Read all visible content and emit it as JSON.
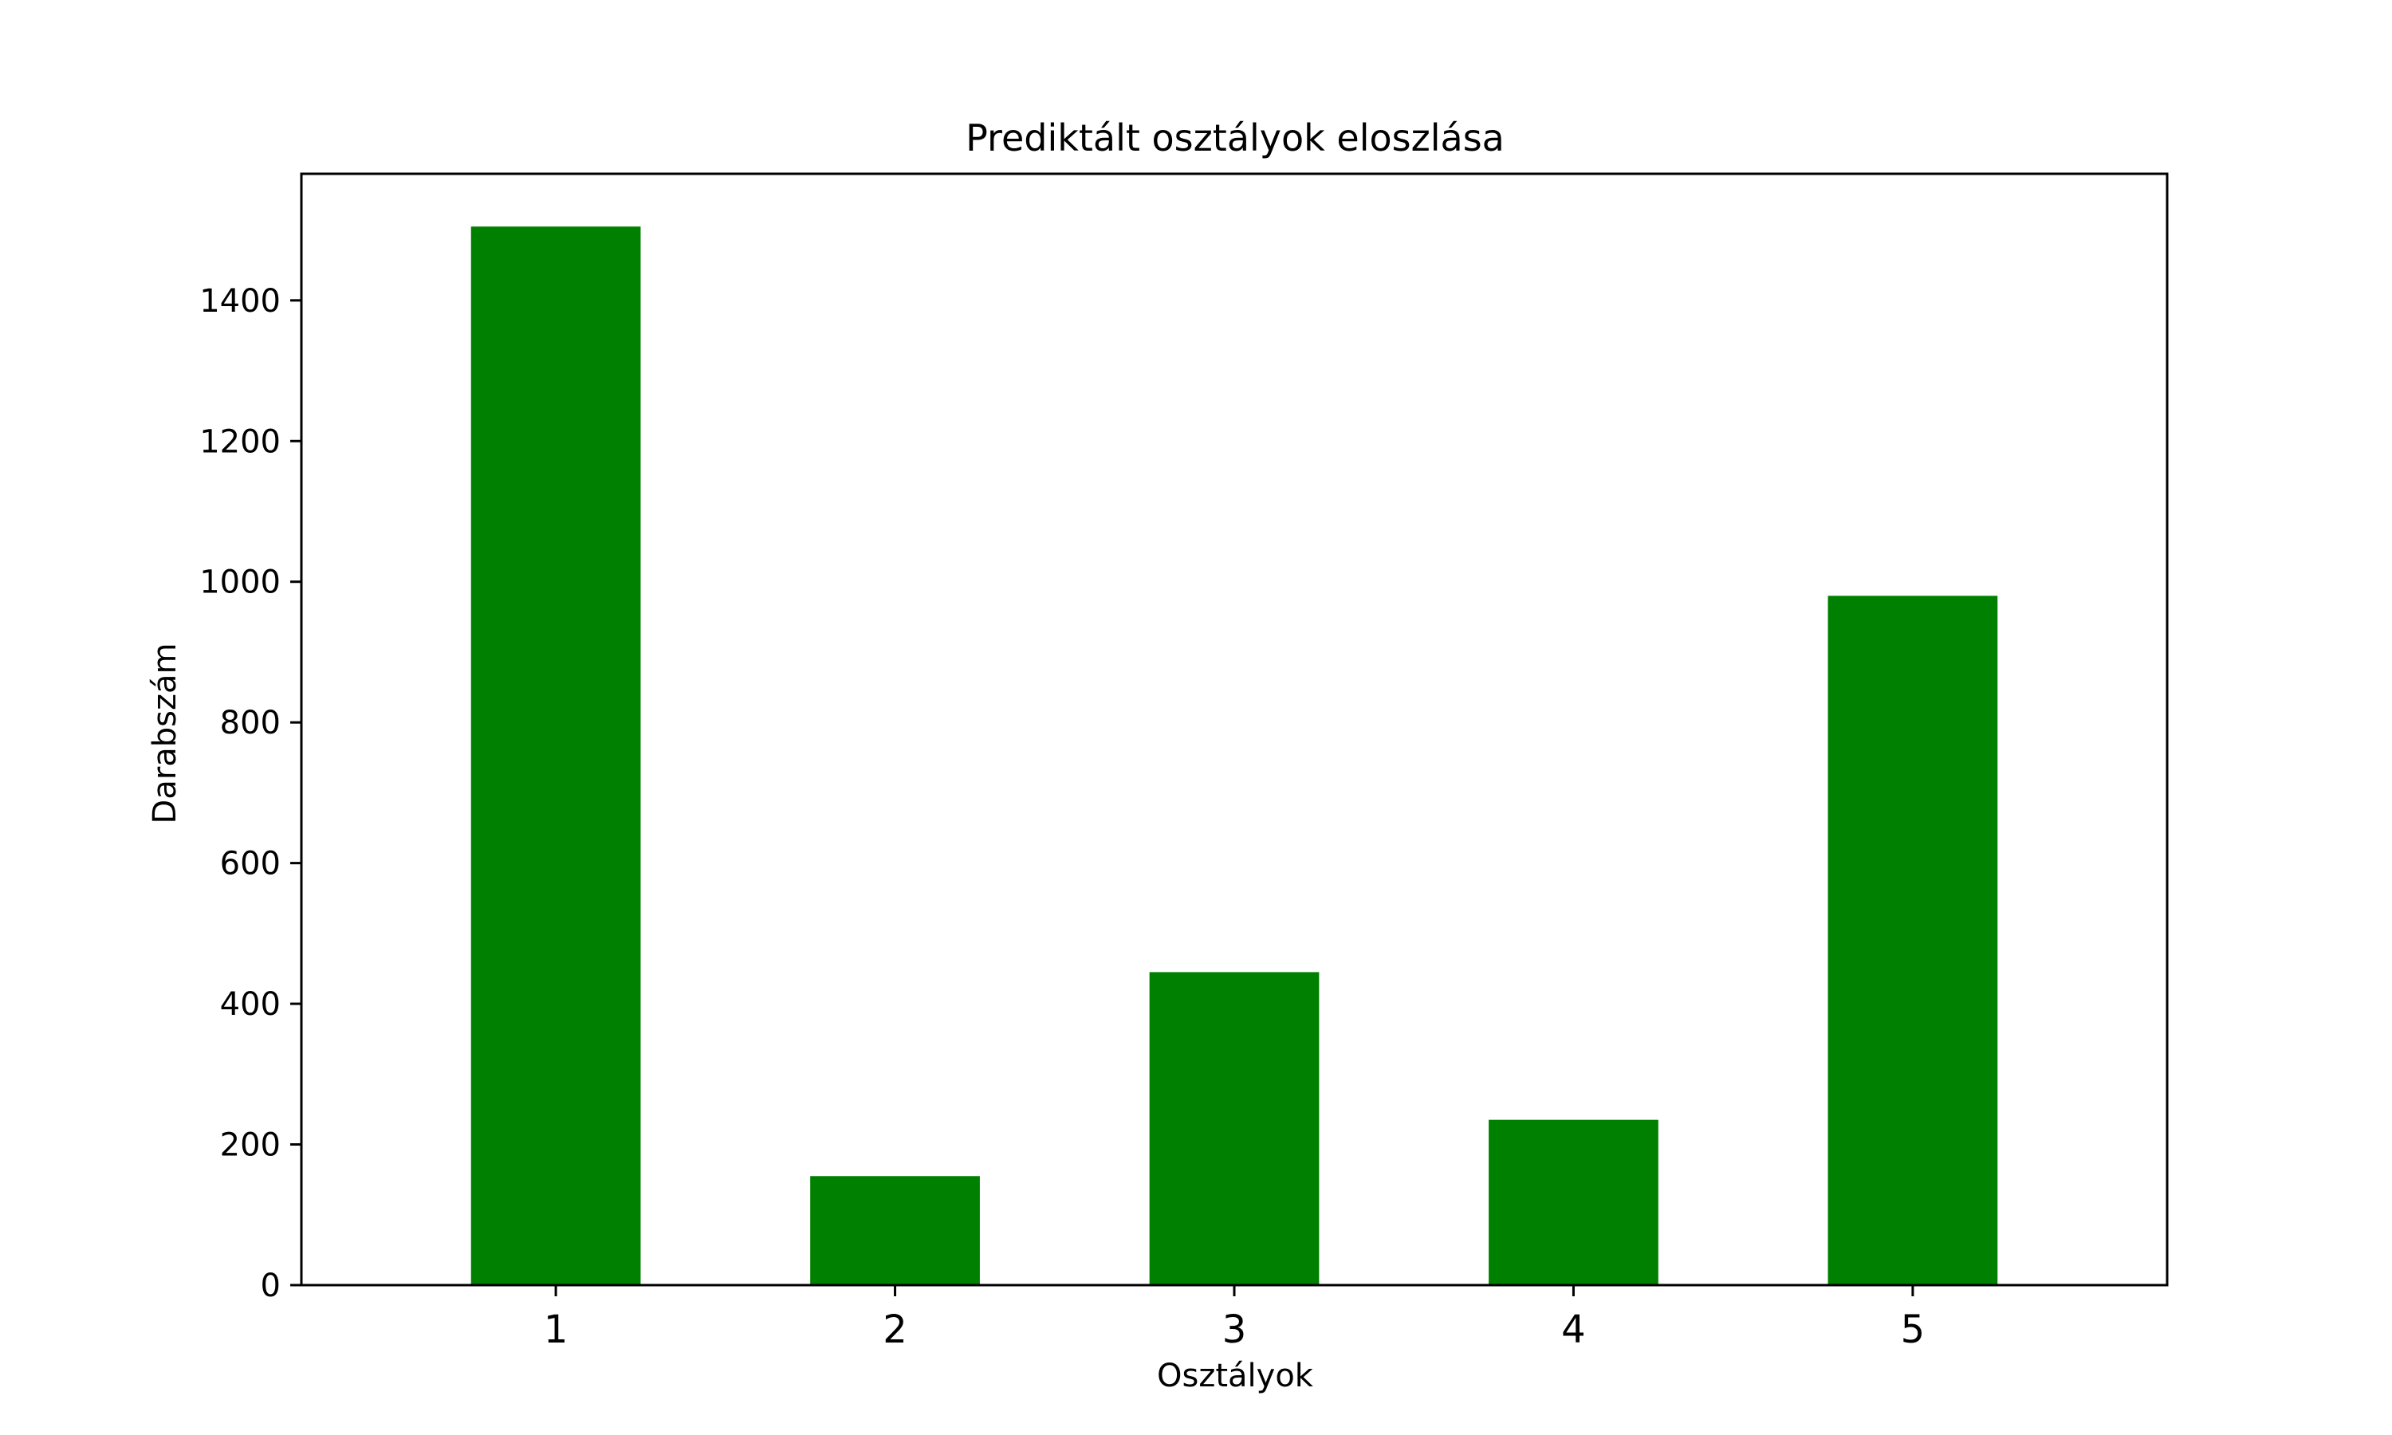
{
  "chart_data": {
    "type": "bar",
    "title": "Prediktált osztályok eloszlása",
    "xlabel": "Osztályok",
    "ylabel": "Darabszám",
    "categories": [
      "1",
      "2",
      "3",
      "4",
      "5"
    ],
    "values": [
      1505,
      155,
      445,
      235,
      980
    ],
    "ylim": [
      0,
      1580
    ],
    "yticks": [
      0,
      200,
      400,
      600,
      800,
      1000,
      1200,
      1400
    ],
    "bar_color": "#008000",
    "grid": false,
    "legend": "none"
  }
}
